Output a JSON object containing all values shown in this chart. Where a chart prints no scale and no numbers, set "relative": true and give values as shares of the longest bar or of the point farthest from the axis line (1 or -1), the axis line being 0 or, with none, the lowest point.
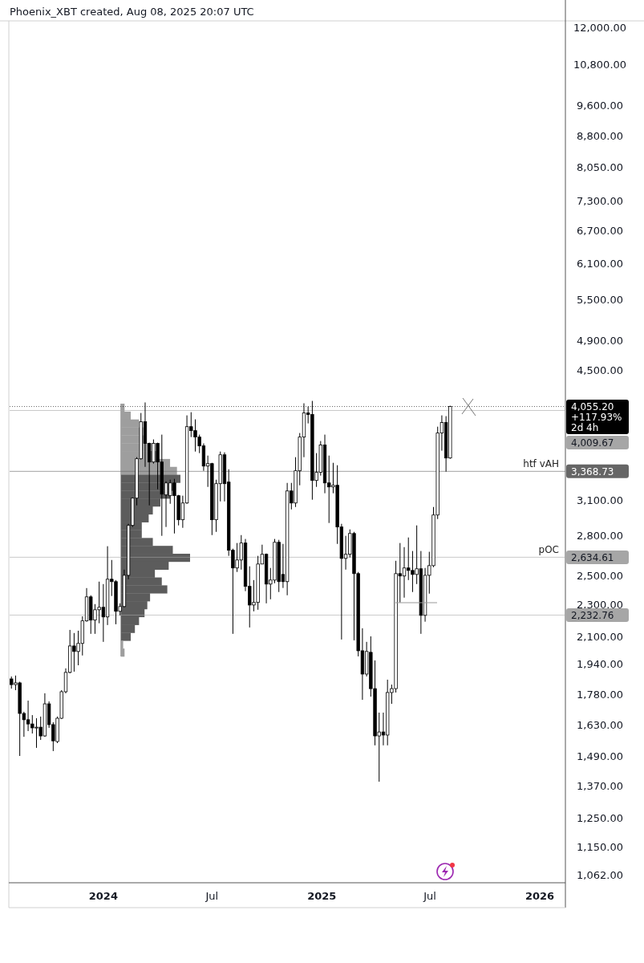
{
  "chart_data": [
    {
      "type": "candlestick",
      "title": "Phoenix_XBT created, Aug 08, 2025 20:07 UTC",
      "color": "#000000",
      "log": true,
      "x": [
        "2023-07-31",
        "2023-08-07",
        "2023-08-14",
        "2023-08-21",
        "2023-08-28",
        "2023-09-04",
        "2023-09-11",
        "2023-09-18",
        "2023-09-25",
        "2023-10-02",
        "2023-10-09",
        "2023-10-16",
        "2023-10-23",
        "2023-10-30",
        "2023-11-06",
        "2023-11-13",
        "2023-11-20",
        "2023-11-27",
        "2023-12-04",
        "2023-12-11",
        "2023-12-18",
        "2023-12-25",
        "2024-01-01",
        "2024-01-08",
        "2024-01-15",
        "2024-01-22",
        "2024-01-29",
        "2024-02-05",
        "2024-02-12",
        "2024-02-19",
        "2024-02-26",
        "2024-03-04",
        "2024-03-11",
        "2024-03-18",
        "2024-03-25",
        "2024-04-01",
        "2024-04-08",
        "2024-04-15",
        "2024-04-22",
        "2024-04-29",
        "2024-05-06",
        "2024-05-13",
        "2024-05-20",
        "2024-05-27",
        "2024-06-03",
        "2024-06-10",
        "2024-06-17",
        "2024-06-24",
        "2024-07-01",
        "2024-07-08",
        "2024-07-15",
        "2024-07-22",
        "2024-07-29",
        "2024-08-05",
        "2024-08-12",
        "2024-08-19",
        "2024-08-26",
        "2024-09-02",
        "2024-09-09",
        "2024-09-16",
        "2024-09-23",
        "2024-09-30",
        "2024-10-07",
        "2024-10-14",
        "2024-10-21",
        "2024-10-28",
        "2024-11-04",
        "2024-11-11",
        "2024-11-18",
        "2024-11-25",
        "2024-12-02",
        "2024-12-09",
        "2024-12-16",
        "2024-12-23",
        "2024-12-30",
        "2025-01-06",
        "2025-01-13",
        "2025-01-20",
        "2025-01-27",
        "2025-02-03",
        "2025-02-10",
        "2025-02-17",
        "2025-02-24",
        "2025-03-03",
        "2025-03-10",
        "2025-03-17",
        "2025-03-24",
        "2025-03-31",
        "2025-04-07",
        "2025-04-14",
        "2025-04-21",
        "2025-04-28",
        "2025-05-05",
        "2025-05-12",
        "2025-05-19",
        "2025-05-26",
        "2025-06-02",
        "2025-06-09",
        "2025-06-16",
        "2025-06-23",
        "2025-06-30",
        "2025-07-07",
        "2025-07-14",
        "2025-07-21",
        "2025-07-28",
        "2025-08-04"
      ],
      "ohlc": [
        [
          1860,
          1873,
          1809,
          1830
        ],
        [
          1830,
          1878,
          1801,
          1839
        ],
        [
          1839,
          1845,
          1492,
          1685
        ],
        [
          1685,
          1693,
          1576,
          1655
        ],
        [
          1655,
          1748,
          1602,
          1635
        ],
        [
          1635,
          1677,
          1591,
          1617
        ],
        [
          1617,
          1662,
          1527,
          1620
        ],
        [
          1620,
          1670,
          1562,
          1580
        ],
        [
          1580,
          1785,
          1576,
          1732
        ],
        [
          1732,
          1744,
          1617,
          1632
        ],
        [
          1632,
          1643,
          1513,
          1558
        ],
        [
          1555,
          1670,
          1548,
          1662
        ],
        [
          1662,
          1801,
          1658,
          1793
        ],
        [
          1793,
          1917,
          1785,
          1895
        ],
        [
          1895,
          2140,
          1890,
          2044
        ],
        [
          2044,
          2121,
          1899,
          2012
        ],
        [
          2012,
          2135,
          1934,
          2059
        ],
        [
          2059,
          2225,
          1989,
          2196
        ],
        [
          2196,
          2412,
          2191,
          2352
        ],
        [
          2352,
          2363,
          2116,
          2201
        ],
        [
          2201,
          2304,
          2116,
          2267
        ],
        [
          2267,
          2457,
          2181,
          2283
        ],
        [
          2283,
          2440,
          2068,
          2221
        ],
        [
          2221,
          2719,
          2170,
          2474
        ],
        [
          2474,
          2614,
          2358,
          2457
        ],
        [
          2457,
          2468,
          2175,
          2257
        ],
        [
          2257,
          2309,
          2231,
          2288
        ],
        [
          2288,
          2543,
          2283,
          2502
        ],
        [
          2502,
          2899,
          2474,
          2886
        ],
        [
          2886,
          3127,
          2873,
          3120
        ],
        [
          3120,
          3508,
          3056,
          3492
        ],
        [
          3492,
          3981,
          3484,
          3882
        ],
        [
          3882,
          4103,
          3412,
          3649
        ],
        [
          3649,
          3657,
          3056,
          3460
        ],
        [
          3460,
          3691,
          3444,
          3649
        ],
        [
          3649,
          3657,
          3200,
          3460
        ],
        [
          3460,
          3742,
          2801,
          3156
        ],
        [
          3149,
          3274,
          2873,
          3259
        ],
        [
          3142,
          3289,
          3070,
          3259
        ],
        [
          3259,
          3297,
          2820,
          3142
        ],
        [
          3142,
          3149,
          2886,
          2933
        ],
        [
          2933,
          3142,
          2866,
          3077
        ],
        [
          3077,
          3954,
          3070,
          3828
        ],
        [
          3828,
          3990,
          3716,
          3785
        ],
        [
          3785,
          3909,
          3565,
          3716
        ],
        [
          3716,
          3742,
          3549,
          3623
        ],
        [
          3623,
          3649,
          3374,
          3420
        ],
        [
          3420,
          3524,
          3222,
          3444
        ],
        [
          3444,
          3452,
          2807,
          2933
        ],
        [
          2933,
          3289,
          2833,
          3252
        ],
        [
          3252,
          3565,
          3091,
          3532
        ],
        [
          3532,
          3557,
          3091,
          3252
        ],
        [
          3267,
          3389,
          2645,
          2688
        ],
        [
          2688,
          2700,
          2116,
          2555
        ],
        [
          2555,
          2744,
          2526,
          2614
        ],
        [
          2614,
          2807,
          2543,
          2744
        ],
        [
          2744,
          2776,
          2391,
          2424
        ],
        [
          2424,
          2567,
          2155,
          2298
        ],
        [
          2298,
          2468,
          2257,
          2315
        ],
        [
          2315,
          2645,
          2267,
          2584
        ],
        [
          2584,
          2731,
          2584,
          2657
        ],
        [
          2657,
          2663,
          2309,
          2440
        ],
        [
          2440,
          2555,
          2336,
          2468
        ],
        [
          2468,
          2776,
          2446,
          2750
        ],
        [
          2750,
          2769,
          2385,
          2457
        ],
        [
          2508,
          2737,
          2413,
          2457
        ],
        [
          2457,
          3259,
          2363,
          3185
        ],
        [
          3185,
          3259,
          3021,
          3077
        ],
        [
          3077,
          3508,
          3042,
          3374
        ],
        [
          3374,
          3759,
          3237,
          3716
        ],
        [
          3716,
          4093,
          3508,
          3981
        ],
        [
          3981,
          4055,
          3864,
          3963
        ],
        [
          3963,
          4121,
          3106,
          3282
        ],
        [
          3282,
          3549,
          3222,
          3359
        ],
        [
          3359,
          3674,
          3328,
          3632
        ],
        [
          3632,
          3742,
          3164,
          3259
        ],
        [
          3259,
          3524,
          2906,
          3222
        ],
        [
          3222,
          3452,
          3164,
          3237
        ],
        [
          3237,
          3428,
          2737,
          2873
        ],
        [
          2873,
          2899,
          2082,
          2626
        ],
        [
          2626,
          2801,
          2543,
          2657
        ],
        [
          2657,
          2853,
          2633,
          2820
        ],
        [
          2820,
          2833,
          2077,
          2514
        ],
        [
          2514,
          2526,
          1984,
          2016
        ],
        [
          2016,
          2150,
          1752,
          1886
        ],
        [
          1886,
          2068,
          1873,
          2012
        ],
        [
          2007,
          2101,
          1768,
          1809
        ],
        [
          1809,
          1961,
          1538,
          1580
        ],
        [
          1580,
          1689,
          1386,
          1598
        ],
        [
          1598,
          1689,
          1538,
          1584
        ],
        [
          1584,
          1856,
          1538,
          1789
        ],
        [
          1789,
          1830,
          1732,
          1809
        ],
        [
          1809,
          2608,
          1789,
          2514
        ],
        [
          2514,
          2744,
          2315,
          2497
        ],
        [
          2497,
          2712,
          2347,
          2555
        ],
        [
          2555,
          2788,
          2468,
          2537
        ],
        [
          2537,
          2682,
          2385,
          2508
        ],
        [
          2508,
          2886,
          2440,
          2549
        ],
        [
          2549,
          2682,
          2116,
          2231
        ],
        [
          2231,
          2555,
          2191,
          2502
        ],
        [
          2502,
          2676,
          2374,
          2572
        ],
        [
          2572,
          3042,
          2561,
          2973
        ],
        [
          2973,
          3828,
          2939,
          3759
        ],
        [
          3759,
          3954,
          3574,
          3873
        ],
        [
          3873,
          3945,
          3366,
          3500
        ],
        [
          3500,
          4064,
          3492,
          4055.2
        ]
      ],
      "xlim": [
        "2023-07-28",
        "2026-02-13"
      ],
      "xticks": [
        {
          "value": "2024-01-01",
          "label": "2024"
        },
        {
          "value": "2024-07-01",
          "label": "Jul"
        },
        {
          "value": "2025-01-01",
          "label": "2025"
        },
        {
          "value": "2025-07-01",
          "label": "Jul"
        },
        {
          "value": "2026-01-01",
          "label": "2026"
        }
      ],
      "ylim": [
        1038,
        12170
      ],
      "yticks": [
        {
          "value": 1062,
          "label": "1,062.00"
        },
        {
          "value": 1150,
          "label": "1,150.00"
        },
        {
          "value": 1250,
          "label": "1,250.00"
        },
        {
          "value": 1370,
          "label": "1,370.00"
        },
        {
          "value": 1490,
          "label": "1,490.00"
        },
        {
          "value": 1630,
          "label": "1,630.00"
        },
        {
          "value": 1780,
          "label": "1,780.00"
        },
        {
          "value": 1940,
          "label": "1,940.00"
        },
        {
          "value": 2100,
          "label": "2,100.00"
        },
        {
          "value": 2300,
          "label": "2,300.00"
        },
        {
          "value": 2500,
          "label": "2,500.00"
        },
        {
          "value": 2800,
          "label": "2,800.00"
        },
        {
          "value": 3100,
          "label": "3,100.00"
        },
        {
          "value": 4500,
          "label": "4,500.00"
        },
        {
          "value": 4900,
          "label": "4,900.00"
        },
        {
          "value": 5500,
          "label": "5,500.00"
        },
        {
          "value": 6100,
          "label": "6,100.00"
        },
        {
          "value": 6700,
          "label": "6,700.00"
        },
        {
          "value": 7300,
          "label": "7,300.00"
        },
        {
          "value": 8050,
          "label": "8,050.00"
        },
        {
          "value": 8800,
          "label": "8,800.00"
        },
        {
          "value": 9600,
          "label": "9,600.00"
        },
        {
          "value": 10800,
          "label": "10,800.00"
        },
        {
          "value": 12000,
          "label": "12,000.00"
        }
      ],
      "ref_lines": [
        {
          "axis": "y",
          "value": 4055.2,
          "label": "4,055.20",
          "color": "#000000",
          "line_style": "dotted"
        },
        {
          "axis": "y",
          "value": 4009.67,
          "label": "4,009.67",
          "color": "#a6a6a6"
        },
        {
          "axis": "y",
          "value": 3368.73,
          "label": "3,368.73",
          "color": "#666666"
        },
        {
          "axis": "y",
          "value": 2634.61,
          "label": "2,634.61",
          "color": "#a6a6a6"
        },
        {
          "axis": "y",
          "value": 2232.76,
          "label": "2,232.76",
          "color": "#a6a6a6"
        }
      ],
      "annotations": [
        "+117.93%",
        "2d 4h",
        {
          "text": "htf vAH",
          "y": 3368.73
        },
        {
          "text": "pOC",
          "y": 2634.61
        }
      ]
    },
    {
      "type": "bar",
      "orientation": "horizontal",
      "relative": true,
      "categories": [
        null,
        null,
        null,
        null,
        null,
        null,
        null,
        null,
        null,
        null,
        null,
        null,
        null,
        null,
        null,
        null,
        null,
        null,
        null,
        null,
        null,
        null,
        null,
        null,
        null,
        null,
        null,
        null,
        null,
        null,
        null,
        null
      ],
      "values": [
        0.05,
        0.14,
        0.26,
        0.32,
        0.36,
        0.42,
        0.51,
        0.71,
        0.81,
        0.86,
        0.77,
        0.71,
        0.57,
        0.46,
        0.4,
        0.3,
        0.3,
        0.46,
        0.75,
        1,
        0.69,
        0.49,
        0.59,
        0.67,
        0.42,
        0.38,
        0.34,
        0.26,
        0.2,
        0.14,
        0.03,
        0.05
      ],
      "colors": [
        "#9e9e9e",
        "#9e9e9e",
        "#9e9e9e",
        "#9e9e9e",
        "#9e9e9e",
        "#9e9e9e",
        "#9e9e9e",
        "#9e9e9e",
        "#9e9e9e",
        "#5c5c5c",
        "#5c5c5c",
        "#5c5c5c",
        "#5c5c5c",
        "#5c5c5c",
        "#5c5c5c",
        "#5c5c5c",
        "#5c5c5c",
        "#5c5c5c",
        "#5c5c5c",
        "#5c5c5c",
        "#5c5c5c",
        "#5c5c5c",
        "#5c5c5c",
        "#5c5c5c",
        "#5c5c5c",
        "#5c5c5c",
        "#5c5c5c",
        "#5c5c5c",
        "#5c5c5c",
        "#5c5c5c",
        "#9e9e9e",
        "#9e9e9e"
      ]
    }
  ]
}
